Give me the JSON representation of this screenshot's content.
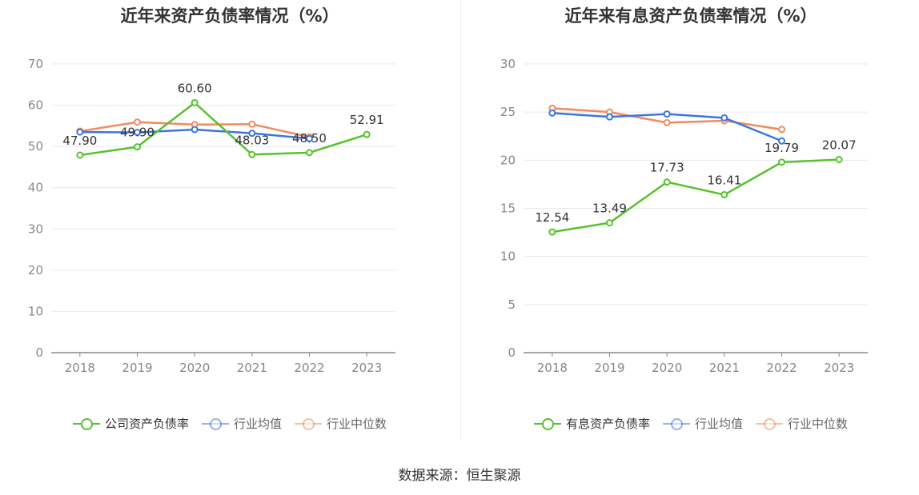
{
  "source_label": "数据来源：恒生聚源",
  "chart_data": [
    {
      "type": "line",
      "title": "近年来资产负债率情况（%）",
      "categories": [
        "2018",
        "2019",
        "2020",
        "2021",
        "2022",
        "2023"
      ],
      "ylim": [
        0,
        70
      ],
      "yticks": [
        0,
        10,
        20,
        30,
        40,
        50,
        60,
        70
      ],
      "grid": true,
      "legend_position": "bottom",
      "series": [
        {
          "name": "公司资产负债率",
          "color": "#58c22e",
          "values": [
            47.9,
            49.9,
            60.6,
            48.03,
            48.5,
            52.91
          ],
          "labels": [
            "47.90",
            "49.90",
            "60.60",
            "48.03",
            "48.50",
            "52.91"
          ]
        },
        {
          "name": "行业均值",
          "color": "#3a76e0",
          "values": [
            53.5,
            53.4,
            54.1,
            53.2,
            51.9,
            null
          ]
        },
        {
          "name": "行业中位数",
          "color": "#f08a5d",
          "values": [
            53.7,
            55.9,
            55.3,
            55.4,
            52.3,
            null
          ]
        }
      ]
    },
    {
      "type": "line",
      "title": "近年来有息资产负债率情况（%）",
      "categories": [
        "2018",
        "2019",
        "2020",
        "2021",
        "2022",
        "2023"
      ],
      "ylim": [
        0,
        30
      ],
      "yticks": [
        0,
        5,
        10,
        15,
        20,
        25,
        30
      ],
      "grid": true,
      "legend_position": "bottom",
      "series": [
        {
          "name": "有息资产负债率",
          "color": "#58c22e",
          "values": [
            12.54,
            13.49,
            17.73,
            16.41,
            19.79,
            20.07
          ],
          "labels": [
            "12.54",
            "13.49",
            "17.73",
            "16.41",
            "19.79",
            "20.07"
          ]
        },
        {
          "name": "行业均值",
          "color": "#3a76e0",
          "values": [
            24.9,
            24.5,
            24.8,
            24.4,
            22.0,
            null
          ]
        },
        {
          "name": "行业中位数",
          "color": "#f08a5d",
          "values": [
            25.4,
            25.0,
            23.9,
            24.1,
            23.2,
            null
          ]
        }
      ]
    }
  ]
}
